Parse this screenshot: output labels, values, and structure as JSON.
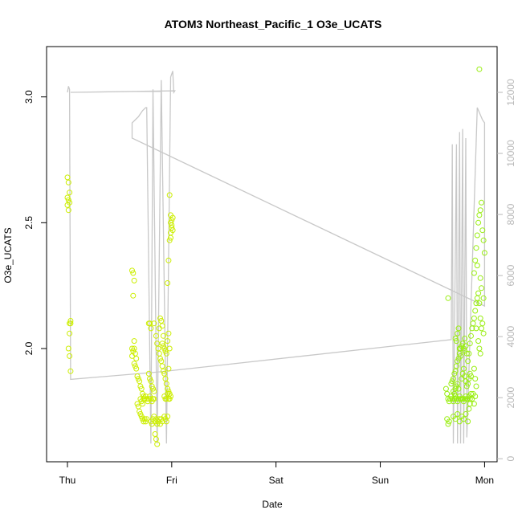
{
  "chart_data": {
    "type": "scatter",
    "title": "ATOM3 Northeast_Pacific_1 O3e_UCATS",
    "xlabel": "Date",
    "ylabel": "O3e_UCATS",
    "x_ticks": [
      {
        "label": "Thu",
        "value": 0
      },
      {
        "label": "Fri",
        "value": 1
      },
      {
        "label": "Sat",
        "value": 2
      },
      {
        "label": "Sun",
        "value": 3
      },
      {
        "label": "Mon",
        "value": 4
      }
    ],
    "xlim": [
      -0.2,
      4.12
    ],
    "ylim": [
      1.55,
      3.2
    ],
    "y_ticks": [
      2.0,
      2.5,
      3.0
    ],
    "y2lim": [
      -100,
      13500
    ],
    "y2_ticks": [
      0,
      2000,
      4000,
      6000,
      8000,
      10000,
      12000
    ],
    "series_colors": {
      "points_early": "#ccee00",
      "points_late": "#99ee11",
      "altitude_line": "#c8c8c8"
    },
    "points": [
      [
        0.0,
        2.68
      ],
      [
        0.01,
        2.66
      ],
      [
        0.02,
        2.62
      ],
      [
        0.0,
        2.6
      ],
      [
        0.01,
        2.59
      ],
      [
        0.02,
        2.58
      ],
      [
        0.0,
        2.57
      ],
      [
        0.01,
        2.55
      ],
      [
        0.03,
        2.11
      ],
      [
        0.02,
        2.1
      ],
      [
        0.03,
        2.1
      ],
      [
        0.02,
        2.06
      ],
      [
        0.01,
        2.0
      ],
      [
        0.02,
        1.97
      ],
      [
        0.03,
        1.91
      ],
      [
        0.62,
        2.31
      ],
      [
        0.63,
        2.3
      ],
      [
        0.64,
        2.27
      ],
      [
        0.63,
        2.21
      ],
      [
        0.62,
        2.0
      ],
      [
        0.63,
        1.99
      ],
      [
        0.64,
        2.0
      ],
      [
        0.65,
        1.98
      ],
      [
        0.62,
        1.97
      ],
      [
        0.66,
        1.96
      ],
      [
        0.64,
        1.94
      ],
      [
        0.65,
        1.93
      ],
      [
        0.66,
        1.92
      ],
      [
        0.64,
        2.03
      ],
      [
        0.67,
        1.89
      ],
      [
        0.68,
        1.88
      ],
      [
        0.69,
        1.87
      ],
      [
        0.7,
        1.85
      ],
      [
        0.71,
        1.84
      ],
      [
        0.72,
        1.82
      ],
      [
        0.73,
        1.81
      ],
      [
        0.74,
        1.8
      ],
      [
        0.7,
        1.8
      ],
      [
        0.71,
        1.79
      ],
      [
        0.72,
        1.78
      ],
      [
        0.73,
        1.8
      ],
      [
        0.75,
        1.81
      ],
      [
        0.76,
        1.8
      ],
      [
        0.77,
        1.79
      ],
      [
        0.78,
        1.8
      ],
      [
        0.79,
        1.81
      ],
      [
        0.8,
        1.8
      ],
      [
        0.81,
        1.79
      ],
      [
        0.82,
        1.8
      ],
      [
        0.83,
        1.8
      ],
      [
        0.69,
        1.75
      ],
      [
        0.7,
        1.74
      ],
      [
        0.71,
        1.73
      ],
      [
        0.72,
        1.72
      ],
      [
        0.73,
        1.71
      ],
      [
        0.74,
        1.72
      ],
      [
        0.75,
        1.71
      ],
      [
        0.76,
        1.72
      ],
      [
        0.68,
        1.77
      ],
      [
        0.67,
        1.78
      ],
      [
        0.8,
        1.71
      ],
      [
        0.81,
        1.7
      ],
      [
        0.82,
        1.72
      ],
      [
        0.83,
        1.73
      ],
      [
        0.84,
        1.71
      ],
      [
        0.85,
        1.72
      ],
      [
        0.86,
        1.7
      ],
      [
        0.87,
        1.71
      ],
      [
        0.88,
        1.72
      ],
      [
        0.89,
        1.7
      ],
      [
        0.9,
        1.72
      ],
      [
        0.91,
        1.71
      ],
      [
        0.84,
        1.66
      ],
      [
        0.85,
        1.64
      ],
      [
        0.86,
        1.62
      ],
      [
        0.78,
        1.9
      ],
      [
        0.79,
        1.88
      ],
      [
        0.8,
        1.87
      ],
      [
        0.81,
        1.85
      ],
      [
        0.82,
        1.84
      ],
      [
        0.83,
        1.83
      ],
      [
        0.78,
        2.1
      ],
      [
        0.79,
        2.1
      ],
      [
        0.8,
        2.08
      ],
      [
        0.83,
        2.1
      ],
      [
        0.85,
        2.05
      ],
      [
        0.86,
        2.02
      ],
      [
        0.87,
        2.0
      ],
      [
        0.88,
        1.98
      ],
      [
        0.89,
        1.96
      ],
      [
        0.9,
        1.95
      ],
      [
        0.91,
        1.93
      ],
      [
        0.88,
        2.08
      ],
      [
        0.89,
        2.12
      ],
      [
        0.9,
        2.11
      ],
      [
        0.91,
        2.09
      ],
      [
        0.92,
        2.05
      ],
      [
        0.92,
        1.91
      ],
      [
        0.93,
        1.9
      ],
      [
        0.94,
        1.88
      ],
      [
        0.95,
        1.86
      ],
      [
        0.96,
        1.84
      ],
      [
        0.97,
        1.83
      ],
      [
        0.98,
        1.82
      ],
      [
        0.93,
        1.81
      ],
      [
        0.94,
        1.8
      ],
      [
        0.95,
        1.8
      ],
      [
        0.96,
        1.82
      ],
      [
        0.97,
        1.8
      ],
      [
        0.98,
        1.8
      ],
      [
        0.99,
        1.81
      ],
      [
        0.93,
        1.73
      ],
      [
        0.94,
        1.72
      ],
      [
        0.95,
        1.71
      ],
      [
        0.96,
        1.73
      ],
      [
        0.91,
        2.02
      ],
      [
        0.92,
        2.01
      ],
      [
        0.93,
        2.0
      ],
      [
        0.94,
        1.99
      ],
      [
        0.95,
        1.98
      ],
      [
        0.96,
        2.03
      ],
      [
        0.97,
        2.06
      ],
      [
        0.97,
        1.92
      ],
      [
        0.98,
        2.0
      ],
      [
        0.96,
        2.26
      ],
      [
        0.97,
        2.35
      ],
      [
        0.98,
        2.43
      ],
      [
        0.99,
        2.46
      ],
      [
        1.0,
        2.48
      ],
      [
        0.99,
        2.5
      ],
      [
        1.0,
        2.51
      ],
      [
        1.01,
        2.52
      ],
      [
        0.99,
        2.53
      ],
      [
        1.0,
        2.49
      ],
      [
        1.01,
        2.47
      ],
      [
        0.98,
        2.61
      ],
      [
        0.99,
        2.44
      ],
      [
        3.65,
        2.2
      ],
      [
        3.63,
        1.84
      ],
      [
        3.64,
        1.82
      ],
      [
        3.65,
        1.8
      ],
      [
        3.66,
        1.79
      ],
      [
        3.67,
        1.8
      ],
      [
        3.68,
        1.81
      ],
      [
        3.66,
        1.71
      ],
      [
        3.65,
        1.7
      ],
      [
        3.64,
        1.72
      ],
      [
        3.69,
        1.8
      ],
      [
        3.7,
        1.79
      ],
      [
        3.71,
        1.8
      ],
      [
        3.72,
        1.81
      ],
      [
        3.73,
        1.8
      ],
      [
        3.74,
        1.79
      ],
      [
        3.75,
        1.8
      ],
      [
        3.76,
        1.81
      ],
      [
        3.77,
        1.8
      ],
      [
        3.78,
        1.8
      ],
      [
        3.79,
        1.8
      ],
      [
        3.8,
        1.79
      ],
      [
        3.81,
        1.8
      ],
      [
        3.82,
        1.81
      ],
      [
        3.83,
        1.8
      ],
      [
        3.84,
        1.8
      ],
      [
        3.85,
        1.81
      ],
      [
        3.86,
        1.8
      ],
      [
        3.68,
        1.86
      ],
      [
        3.69,
        1.87
      ],
      [
        3.7,
        1.88
      ],
      [
        3.71,
        1.9
      ],
      [
        3.72,
        1.91
      ],
      [
        3.73,
        1.93
      ],
      [
        3.74,
        1.95
      ],
      [
        3.75,
        1.96
      ],
      [
        3.76,
        1.98
      ],
      [
        3.77,
        2.0
      ],
      [
        3.78,
        2.01
      ],
      [
        3.79,
        2.02
      ],
      [
        3.8,
        2.0
      ],
      [
        3.81,
        1.99
      ],
      [
        3.72,
        2.04
      ],
      [
        3.73,
        2.03
      ],
      [
        3.74,
        2.06
      ],
      [
        3.75,
        2.08
      ],
      [
        3.76,
        2.0
      ],
      [
        3.77,
        1.97
      ],
      [
        3.7,
        1.83
      ],
      [
        3.71,
        1.82
      ],
      [
        3.72,
        1.84
      ],
      [
        3.73,
        1.85
      ],
      [
        3.74,
        1.86
      ],
      [
        3.75,
        1.84
      ],
      [
        3.78,
        1.88
      ],
      [
        3.79,
        1.9
      ],
      [
        3.8,
        1.92
      ],
      [
        3.81,
        1.89
      ],
      [
        3.82,
        1.87
      ],
      [
        3.83,
        1.85
      ],
      [
        3.84,
        1.86
      ],
      [
        3.85,
        1.88
      ],
      [
        3.86,
        1.9
      ],
      [
        3.87,
        1.89
      ],
      [
        3.7,
        1.73
      ],
      [
        3.72,
        1.72
      ],
      [
        3.74,
        1.74
      ],
      [
        3.76,
        1.71
      ],
      [
        3.78,
        1.73
      ],
      [
        3.8,
        1.72
      ],
      [
        3.82,
        1.74
      ],
      [
        3.84,
        1.71
      ],
      [
        3.85,
        1.76
      ],
      [
        3.86,
        1.78
      ],
      [
        3.87,
        1.82
      ],
      [
        3.84,
        1.95
      ],
      [
        3.85,
        1.98
      ],
      [
        3.86,
        2.02
      ],
      [
        3.87,
        2.05
      ],
      [
        3.88,
        2.08
      ],
      [
        3.89,
        2.1
      ],
      [
        3.9,
        2.12
      ],
      [
        3.91,
        2.15
      ],
      [
        3.92,
        2.18
      ],
      [
        3.93,
        2.2
      ],
      [
        3.94,
        2.22
      ],
      [
        3.95,
        2.18
      ],
      [
        3.96,
        2.12
      ],
      [
        3.97,
        2.08
      ],
      [
        3.98,
        2.1
      ],
      [
        3.99,
        2.06
      ],
      [
        3.9,
        2.3
      ],
      [
        3.91,
        2.35
      ],
      [
        3.92,
        2.4
      ],
      [
        3.93,
        2.45
      ],
      [
        3.94,
        2.5
      ],
      [
        3.95,
        2.53
      ],
      [
        3.96,
        2.55
      ],
      [
        3.97,
        2.58
      ],
      [
        3.98,
        2.47
      ],
      [
        3.99,
        2.43
      ],
      [
        4.0,
        2.38
      ],
      [
        3.93,
        2.33
      ],
      [
        3.96,
        2.28
      ],
      [
        3.97,
        2.24
      ],
      [
        3.99,
        2.2
      ],
      [
        3.94,
        2.03
      ],
      [
        3.95,
        2.0
      ],
      [
        3.96,
        1.98
      ],
      [
        3.92,
        2.08
      ],
      [
        3.95,
        3.11
      ],
      [
        3.9,
        1.92
      ],
      [
        3.91,
        1.88
      ],
      [
        3.92,
        1.85
      ],
      [
        3.88,
        1.8
      ],
      [
        3.89,
        1.82
      ],
      [
        3.9,
        1.78
      ],
      [
        3.91,
        1.81
      ],
      [
        3.83,
        1.98
      ],
      [
        3.82,
        2.01
      ],
      [
        3.81,
        2.04
      ]
    ],
    "altitude_line": [
      [
        0.0,
        12000
      ],
      [
        0.01,
        12200
      ],
      [
        0.02,
        12100
      ],
      [
        0.03,
        2600
      ],
      [
        0.9,
        2850
      ],
      [
        3.68,
        3900
      ],
      [
        3.69,
        10300
      ],
      [
        3.7,
        500
      ],
      [
        3.73,
        10300
      ],
      [
        3.74,
        500
      ],
      [
        3.76,
        10700
      ],
      [
        3.77,
        500
      ],
      [
        3.79,
        10800
      ],
      [
        3.8,
        500
      ],
      [
        3.82,
        10500
      ],
      [
        3.83,
        700
      ],
      [
        3.93,
        11500
      ],
      [
        3.98,
        11100
      ],
      [
        4.0,
        11000
      ],
      [
        4.0,
        5000
      ],
      [
        0.62,
        10500
      ],
      [
        0.62,
        11000
      ],
      [
        0.68,
        11200
      ],
      [
        0.72,
        11400
      ],
      [
        0.75,
        11500
      ],
      [
        0.76,
        11500
      ],
      [
        0.8,
        500
      ],
      [
        0.82,
        12100
      ],
      [
        0.86,
        500
      ],
      [
        0.9,
        12400
      ],
      [
        0.95,
        500
      ],
      [
        0.99,
        12500
      ],
      [
        1.0,
        12600
      ],
      [
        1.01,
        12700
      ],
      [
        1.02,
        12000
      ],
      [
        1.03,
        12050
      ],
      [
        0.03,
        12000
      ]
    ]
  }
}
